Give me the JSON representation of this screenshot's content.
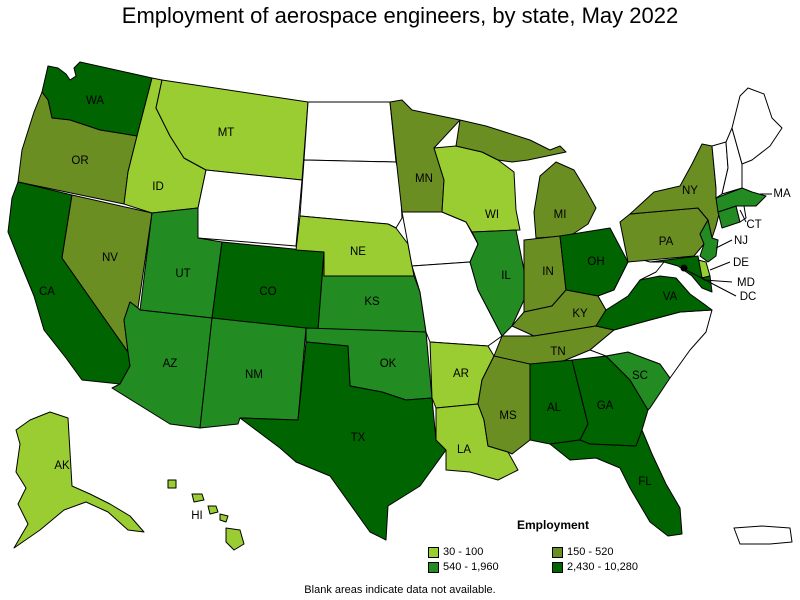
{
  "title": "Employment of aerospace engineers, by state, May 2022",
  "legend": {
    "title": "Employment",
    "items": [
      {
        "label": "30 - 100",
        "color": "#9acd32"
      },
      {
        "label": "150 - 520",
        "color": "#6b8e23"
      },
      {
        "label": "540 - 1,960",
        "color": "#228b22"
      },
      {
        "label": "2,430 - 10,280",
        "color": "#006400"
      }
    ]
  },
  "footnote": "Blank areas indicate data not available.",
  "states": [
    {
      "code": "WA",
      "label": "WA",
      "class": 3
    },
    {
      "code": "OR",
      "label": "OR",
      "class": 1
    },
    {
      "code": "CA",
      "label": "CA",
      "class": 3
    },
    {
      "code": "NV",
      "label": "NV",
      "class": 1
    },
    {
      "code": "ID",
      "label": "ID",
      "class": 0
    },
    {
      "code": "MT",
      "label": "MT",
      "class": 0
    },
    {
      "code": "WY",
      "label": "",
      "class": null
    },
    {
      "code": "UT",
      "label": "UT",
      "class": 2
    },
    {
      "code": "AZ",
      "label": "AZ",
      "class": 2
    },
    {
      "code": "CO",
      "label": "CO",
      "class": 3
    },
    {
      "code": "NM",
      "label": "NM",
      "class": 2
    },
    {
      "code": "ND",
      "label": "",
      "class": null
    },
    {
      "code": "SD",
      "label": "",
      "class": null
    },
    {
      "code": "NE",
      "label": "NE",
      "class": 0
    },
    {
      "code": "KS",
      "label": "KS",
      "class": 2
    },
    {
      "code": "OK",
      "label": "OK",
      "class": 2
    },
    {
      "code": "TX",
      "label": "TX",
      "class": 3
    },
    {
      "code": "MN",
      "label": "MN",
      "class": 1
    },
    {
      "code": "IA",
      "label": "",
      "class": null
    },
    {
      "code": "MO",
      "label": "",
      "class": null
    },
    {
      "code": "AR",
      "label": "AR",
      "class": 0
    },
    {
      "code": "LA",
      "label": "LA",
      "class": 0
    },
    {
      "code": "WI",
      "label": "WI",
      "class": 0
    },
    {
      "code": "IL",
      "label": "IL",
      "class": 2
    },
    {
      "code": "MI",
      "label": "MI",
      "class": 1
    },
    {
      "code": "IN",
      "label": "IN",
      "class": 1
    },
    {
      "code": "OH",
      "label": "OH",
      "class": 3
    },
    {
      "code": "KY",
      "label": "KY",
      "class": 1
    },
    {
      "code": "TN",
      "label": "TN",
      "class": 1
    },
    {
      "code": "MS",
      "label": "MS",
      "class": 1
    },
    {
      "code": "AL",
      "label": "AL",
      "class": 3
    },
    {
      "code": "GA",
      "label": "GA",
      "class": 3
    },
    {
      "code": "FL",
      "label": "FL",
      "class": 3
    },
    {
      "code": "SC",
      "label": "SC",
      "class": 2
    },
    {
      "code": "NC",
      "label": "",
      "class": null
    },
    {
      "code": "VA",
      "label": "VA",
      "class": 3
    },
    {
      "code": "WV",
      "label": "",
      "class": null
    },
    {
      "code": "PA",
      "label": "PA",
      "class": 1
    },
    {
      "code": "NY",
      "label": "NY",
      "class": 1
    },
    {
      "code": "NJ",
      "label": "NJ",
      "class": 2
    },
    {
      "code": "DE",
      "label": "DE",
      "class": 0
    },
    {
      "code": "MD",
      "label": "MD",
      "class": 3
    },
    {
      "code": "DC",
      "label": "DC",
      "class": 3
    },
    {
      "code": "CT",
      "label": "CT",
      "class": 2
    },
    {
      "code": "RI",
      "label": "",
      "class": null
    },
    {
      "code": "MA",
      "label": "MA",
      "class": 2
    },
    {
      "code": "VT",
      "label": "",
      "class": null
    },
    {
      "code": "NH",
      "label": "",
      "class": null
    },
    {
      "code": "ME",
      "label": "",
      "class": null
    },
    {
      "code": "AK",
      "label": "AK",
      "class": 0
    },
    {
      "code": "HI",
      "label": "HI",
      "class": 0
    },
    {
      "code": "PR",
      "label": "",
      "class": null
    }
  ]
}
